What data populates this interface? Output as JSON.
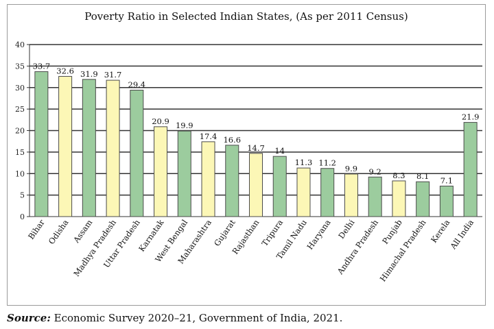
{
  "chart_data": {
    "type": "bar",
    "title": "Poverty Ratio in Selected Indian States, (As per 2011 Census)",
    "categories": [
      "Bihar",
      "Odisha",
      "Assam",
      "Madhya Pradesh",
      "Uttar Pradesh",
      "Karnatak",
      "West Bengal",
      "Maharashtra",
      "Gujarat",
      "Rajasthan",
      "Tripura",
      "Tamil Nadu",
      "Haryana",
      "Delhi",
      "Andhra Pradesh",
      "Punjab",
      "Himachal Pradesh",
      "Kerela",
      "All India"
    ],
    "values": [
      33.7,
      32.6,
      31.9,
      31.7,
      29.4,
      20.9,
      19.9,
      17.4,
      16.6,
      14.7,
      14,
      11.3,
      11.2,
      9.9,
      9.2,
      8.3,
      8.1,
      7.1,
      21.9
    ],
    "value_labels": [
      "33.7",
      "32.6",
      "31.9",
      "31.7",
      "29.4",
      "20.9",
      "19.9",
      "17.4",
      "16.6",
      "14.7",
      "14",
      "11.3",
      "11.2",
      "9.9",
      "9.2",
      "8.3",
      "8.1",
      "7.1",
      "21.9"
    ],
    "bar_colors": [
      "green",
      "yellow",
      "green",
      "yellow",
      "green",
      "yellow",
      "green",
      "yellow",
      "green",
      "yellow",
      "green",
      "yellow",
      "green",
      "yellow",
      "green",
      "yellow",
      "green",
      "green",
      "green"
    ],
    "ylim": [
      0,
      40
    ],
    "yticks": [
      0,
      5,
      10,
      15,
      20,
      25,
      30,
      35,
      40
    ],
    "xlabel": "",
    "ylabel": "",
    "grid": true,
    "colors": {
      "green": "#9ccc9e",
      "yellow": "#fcf7b6",
      "bar_edge": "#4a4a4a",
      "grid": "#333333"
    }
  },
  "source": {
    "label": "Source:",
    "text": " Economic Survey 2020–21, Government of India, 2021."
  }
}
